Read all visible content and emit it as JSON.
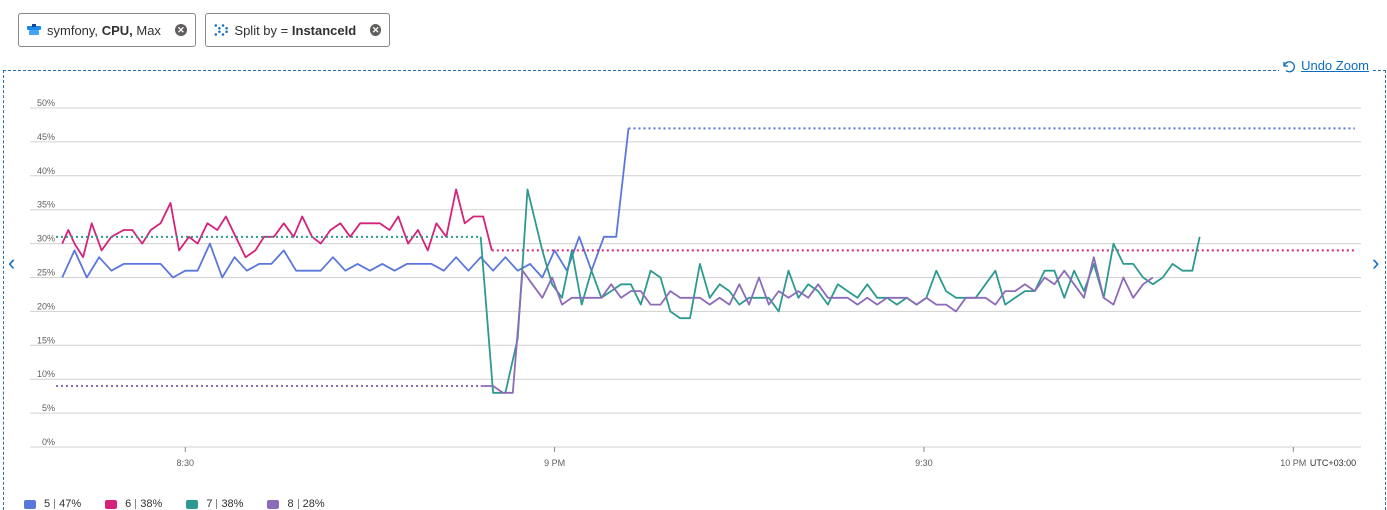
{
  "filters": {
    "metric_pill": {
      "resource": "symfony,",
      "metric": "CPU,",
      "aggregation": "Max",
      "icon": "resource-cube-icon"
    },
    "split_pill": {
      "label": "Split by",
      "eq": "=",
      "value": "InstanceId",
      "icon": "split-icon"
    }
  },
  "toolbar": {
    "undo_zoom": "Undo Zoom"
  },
  "timezone": "UTC+03:00",
  "chart_data": {
    "type": "line",
    "y_ticks": [
      "50%",
      "45%",
      "40%",
      "35%",
      "30%",
      "25%",
      "20%",
      "15%",
      "10%",
      "5%",
      "0%"
    ],
    "ylim": [
      0,
      50
    ],
    "x_ticks": [
      {
        "label": "8:30",
        "t": 30
      },
      {
        "label": "9 PM",
        "t": 60
      },
      {
        "label": "9:30",
        "t": 90
      },
      {
        "label": "10 PM",
        "t": 120
      }
    ],
    "xlim": [
      19.5,
      125.5
    ],
    "grid": true,
    "series": [
      {
        "name": "5",
        "color": "#5b77db",
        "legend_value": "47%",
        "points": [
          [
            20,
            25
          ],
          [
            21,
            29
          ],
          [
            22,
            25
          ],
          [
            23,
            28
          ],
          [
            24,
            26
          ],
          [
            25,
            27
          ],
          [
            26,
            27
          ],
          [
            27,
            27
          ],
          [
            28,
            27
          ],
          [
            29,
            25
          ],
          [
            30,
            26
          ],
          [
            31,
            26
          ],
          [
            32,
            30
          ],
          [
            33,
            25
          ],
          [
            34,
            28
          ],
          [
            35,
            26
          ],
          [
            36,
            27
          ],
          [
            37,
            27
          ],
          [
            38,
            29
          ],
          [
            39,
            26
          ],
          [
            40,
            26
          ],
          [
            41,
            26
          ],
          [
            42,
            28
          ],
          [
            43,
            26
          ],
          [
            44,
            27
          ],
          [
            45,
            26
          ],
          [
            46,
            27
          ],
          [
            47,
            26
          ],
          [
            48,
            27
          ],
          [
            49,
            27
          ],
          [
            50,
            27
          ],
          [
            51,
            26
          ],
          [
            52,
            28
          ],
          [
            53,
            26
          ],
          [
            54,
            28
          ],
          [
            55,
            26
          ],
          [
            56,
            28
          ],
          [
            57,
            26
          ],
          [
            58,
            27
          ],
          [
            59,
            25
          ],
          [
            60,
            29
          ],
          [
            61,
            26
          ],
          [
            62,
            31
          ],
          [
            63,
            26
          ],
          [
            64,
            31
          ],
          [
            65,
            31
          ],
          [
            66,
            47
          ]
        ],
        "dotted": [
          [
            66,
            47
          ],
          [
            125,
            47
          ]
        ]
      },
      {
        "name": "6",
        "color": "#d4237a",
        "legend_value": "38%",
        "points": [
          [
            20,
            30
          ],
          [
            20.5,
            32
          ],
          [
            21,
            30
          ],
          [
            21.7,
            28
          ],
          [
            22.4,
            33
          ],
          [
            23.2,
            29
          ],
          [
            24,
            31
          ],
          [
            25,
            32
          ],
          [
            25.7,
            32
          ],
          [
            26.5,
            30
          ],
          [
            27.2,
            32
          ],
          [
            28,
            33
          ],
          [
            28.8,
            36
          ],
          [
            29.5,
            29
          ],
          [
            30.3,
            31
          ],
          [
            31,
            30
          ],
          [
            31.8,
            33
          ],
          [
            32.6,
            32
          ],
          [
            33.3,
            34
          ],
          [
            34.1,
            31
          ],
          [
            34.9,
            28
          ],
          [
            35.7,
            29
          ],
          [
            36.4,
            31
          ],
          [
            37.2,
            31
          ],
          [
            38,
            33
          ],
          [
            38.8,
            31
          ],
          [
            39.5,
            34
          ],
          [
            40.3,
            31
          ],
          [
            41,
            30
          ],
          [
            41.8,
            32
          ],
          [
            42.6,
            33
          ],
          [
            43.4,
            31
          ],
          [
            44.2,
            33
          ],
          [
            45,
            33
          ],
          [
            45.8,
            33
          ],
          [
            46.6,
            32
          ],
          [
            47.3,
            34
          ],
          [
            48.1,
            30
          ],
          [
            48.9,
            32
          ],
          [
            49.7,
            29
          ],
          [
            50.4,
            33
          ],
          [
            51.2,
            31
          ],
          [
            52,
            38
          ],
          [
            52.7,
            33
          ],
          [
            53.4,
            34
          ],
          [
            54.2,
            34
          ],
          [
            54.9,
            29
          ]
        ],
        "dotted": [
          [
            54.9,
            29
          ],
          [
            125,
            29
          ]
        ]
      },
      {
        "name": "7",
        "color": "#2d9a8f",
        "legend_value": "38%",
        "points": [
          [
            54,
            31
          ],
          [
            55,
            8
          ],
          [
            56,
            8
          ],
          [
            57,
            16
          ],
          [
            57.8,
            38
          ],
          [
            59,
            29
          ],
          [
            59.8,
            24
          ],
          [
            60.6,
            22
          ],
          [
            61.4,
            29
          ],
          [
            62.2,
            21
          ],
          [
            63,
            26
          ],
          [
            63.8,
            22
          ],
          [
            64.6,
            23
          ],
          [
            65.4,
            24
          ],
          [
            66.2,
            24
          ],
          [
            67,
            21
          ],
          [
            67.8,
            26
          ],
          [
            68.6,
            25
          ],
          [
            69.4,
            20
          ],
          [
            70.2,
            19
          ],
          [
            71,
            19
          ],
          [
            71.8,
            27
          ],
          [
            72.6,
            22
          ],
          [
            73.4,
            24
          ],
          [
            74.2,
            23
          ],
          [
            75,
            21
          ],
          [
            75.8,
            22
          ],
          [
            76.6,
            22
          ],
          [
            77.4,
            22
          ],
          [
            78.2,
            20
          ],
          [
            79,
            26
          ],
          [
            79.8,
            22
          ],
          [
            80.6,
            24
          ],
          [
            81.4,
            23
          ],
          [
            82.2,
            21
          ],
          [
            83,
            24
          ],
          [
            83.8,
            23
          ],
          [
            84.6,
            22
          ],
          [
            85.4,
            24
          ],
          [
            86.2,
            22
          ],
          [
            87,
            22
          ],
          [
            87.8,
            21
          ],
          [
            88.6,
            22
          ],
          [
            89.4,
            21
          ],
          [
            90.2,
            22
          ],
          [
            91,
            26
          ],
          [
            91.8,
            23
          ],
          [
            92.6,
            22
          ],
          [
            93.4,
            22
          ],
          [
            94.2,
            22
          ],
          [
            95,
            24
          ],
          [
            95.8,
            26
          ],
          [
            96.6,
            21
          ],
          [
            97.4,
            22
          ],
          [
            98.2,
            23
          ],
          [
            99,
            23
          ],
          [
            99.8,
            26
          ],
          [
            100.6,
            26
          ],
          [
            101.4,
            22
          ],
          [
            102.2,
            26
          ],
          [
            103,
            23
          ],
          [
            103.8,
            27
          ],
          [
            104.6,
            22
          ],
          [
            105.4,
            30
          ],
          [
            106.2,
            27
          ],
          [
            107,
            27
          ],
          [
            107.8,
            25
          ],
          [
            108.6,
            24
          ],
          [
            109.4,
            25
          ],
          [
            110.2,
            27
          ],
          [
            111,
            26
          ],
          [
            111.8,
            26
          ],
          [
            112.4,
            31
          ]
        ],
        "dotted": [
          [
            0,
            31
          ],
          [
            54,
            31
          ]
        ]
      },
      {
        "name": "8",
        "color": "#8c6bb8",
        "legend_value": "28%",
        "points": [
          [
            54,
            9
          ],
          [
            55,
            9
          ],
          [
            55.8,
            8
          ],
          [
            56.6,
            8
          ],
          [
            57.4,
            26
          ],
          [
            58.2,
            24
          ],
          [
            59,
            22
          ],
          [
            59.8,
            25
          ],
          [
            60.6,
            21
          ],
          [
            61.4,
            22
          ],
          [
            62.2,
            22
          ],
          [
            63,
            22
          ],
          [
            63.8,
            22
          ],
          [
            64.6,
            24
          ],
          [
            65.4,
            22
          ],
          [
            66.2,
            23
          ],
          [
            67,
            23
          ],
          [
            67.8,
            21
          ],
          [
            68.6,
            21
          ],
          [
            69.4,
            23
          ],
          [
            70.2,
            22
          ],
          [
            71,
            22
          ],
          [
            71.8,
            22
          ],
          [
            72.6,
            21
          ],
          [
            73.4,
            22
          ],
          [
            74.2,
            21
          ],
          [
            75,
            24
          ],
          [
            75.8,
            21
          ],
          [
            76.6,
            25
          ],
          [
            77.4,
            21
          ],
          [
            78.2,
            23
          ],
          [
            79,
            22
          ],
          [
            79.8,
            23
          ],
          [
            80.6,
            22
          ],
          [
            81.4,
            24
          ],
          [
            82.2,
            22
          ],
          [
            83,
            22
          ],
          [
            83.8,
            22
          ],
          [
            84.6,
            21
          ],
          [
            85.4,
            22
          ],
          [
            86.2,
            21
          ],
          [
            87,
            22
          ],
          [
            87.8,
            22
          ],
          [
            88.6,
            22
          ],
          [
            89.4,
            21
          ],
          [
            90.2,
            22
          ],
          [
            91,
            21
          ],
          [
            91.8,
            21
          ],
          [
            92.6,
            20
          ],
          [
            93.4,
            22
          ],
          [
            94.2,
            22
          ],
          [
            95,
            22
          ],
          [
            95.8,
            21
          ],
          [
            96.6,
            23
          ],
          [
            97.4,
            23
          ],
          [
            98.2,
            24
          ],
          [
            99,
            23
          ],
          [
            99.8,
            25
          ],
          [
            100.6,
            24
          ],
          [
            101.4,
            26
          ],
          [
            102.2,
            24
          ],
          [
            103,
            22
          ],
          [
            103.8,
            28
          ],
          [
            104.6,
            22
          ],
          [
            105.4,
            21
          ],
          [
            106.2,
            25
          ],
          [
            107,
            22
          ],
          [
            107.8,
            24
          ],
          [
            108.6,
            25
          ]
        ],
        "dotted": [
          [
            0,
            9
          ],
          [
            54,
            9
          ]
        ]
      }
    ]
  }
}
